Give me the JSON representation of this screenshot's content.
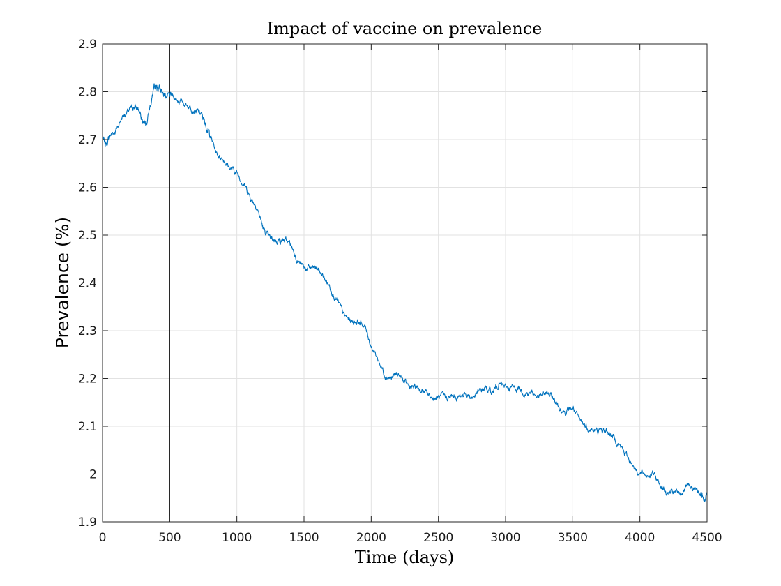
{
  "chart_data": {
    "type": "line",
    "title": "Impact of vaccine on prevalence",
    "xlabel": "Time (days)",
    "ylabel": "Prevalence (%)",
    "xlim": [
      0,
      4500
    ],
    "ylim": [
      1.9,
      2.9
    ],
    "xticks": [
      0,
      500,
      1000,
      1500,
      2000,
      2500,
      3000,
      3500,
      4000,
      4500
    ],
    "xtick_labels": [
      "0",
      "500",
      "1000",
      "1500",
      "2000",
      "2500",
      "3000",
      "3500",
      "4000",
      "4500"
    ],
    "yticks": [
      1.9,
      2.0,
      2.1,
      2.2,
      2.3,
      2.4,
      2.5,
      2.6,
      2.7,
      2.8,
      2.9
    ],
    "ytick_labels": [
      "1.9",
      "2",
      "2.1",
      "2.2",
      "2.3",
      "2.4",
      "2.5",
      "2.6",
      "2.7",
      "2.8",
      "2.9"
    ],
    "grid": true,
    "reference_lines": [
      {
        "orientation": "vertical",
        "x": 500,
        "color": "#000000"
      }
    ],
    "series": [
      {
        "color": "#0072BD",
        "x": [
          0,
          30,
          60,
          100,
          150,
          200,
          240,
          270,
          300,
          330,
          370,
          390,
          410,
          440,
          480,
          520,
          580,
          650,
          700,
          740,
          770,
          800,
          850,
          900,
          950,
          1000,
          1050,
          1100,
          1150,
          1200,
          1250,
          1300,
          1350,
          1400,
          1450,
          1500,
          1550,
          1600,
          1650,
          1700,
          1750,
          1800,
          1850,
          1900,
          1950,
          2000,
          2050,
          2100,
          2150,
          2200,
          2250,
          2300,
          2350,
          2400,
          2450,
          2500,
          2550,
          2600,
          2650,
          2700,
          2750,
          2800,
          2850,
          2900,
          2950,
          3000,
          3050,
          3100,
          3150,
          3200,
          3250,
          3300,
          3350,
          3400,
          3450,
          3500,
          3550,
          3600,
          3650,
          3700,
          3750,
          3800,
          3850,
          3900,
          3950,
          4000,
          4050,
          4100,
          4150,
          4200,
          4250,
          4300,
          4350,
          4400,
          4450,
          4480,
          4500
        ],
        "y": [
          2.7,
          2.69,
          2.71,
          2.72,
          2.75,
          2.76,
          2.77,
          2.76,
          2.74,
          2.74,
          2.79,
          2.81,
          2.81,
          2.8,
          2.79,
          2.79,
          2.78,
          2.77,
          2.76,
          2.75,
          2.73,
          2.71,
          2.67,
          2.66,
          2.64,
          2.63,
          2.61,
          2.58,
          2.56,
          2.51,
          2.49,
          2.49,
          2.49,
          2.48,
          2.45,
          2.43,
          2.43,
          2.43,
          2.41,
          2.39,
          2.36,
          2.33,
          2.32,
          2.32,
          2.31,
          2.27,
          2.24,
          2.21,
          2.2,
          2.21,
          2.19,
          2.18,
          2.18,
          2.17,
          2.16,
          2.16,
          2.16,
          2.16,
          2.16,
          2.17,
          2.16,
          2.17,
          2.18,
          2.17,
          2.19,
          2.18,
          2.18,
          2.18,
          2.17,
          2.17,
          2.16,
          2.17,
          2.16,
          2.14,
          2.13,
          2.14,
          2.11,
          2.1,
          2.09,
          2.09,
          2.09,
          2.08,
          2.06,
          2.04,
          2.02,
          2.0,
          2.0,
          2.0,
          1.98,
          1.96,
          1.96,
          1.96,
          1.97,
          1.97,
          1.96,
          1.95,
          1.96
        ]
      }
    ]
  }
}
